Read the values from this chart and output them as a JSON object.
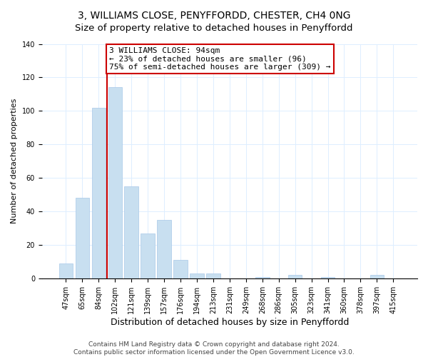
{
  "title": "3, WILLIAMS CLOSE, PENYFFORDD, CHESTER, CH4 0NG",
  "subtitle": "Size of property relative to detached houses in Penyffordd",
  "xlabel": "Distribution of detached houses by size in Penyffordd",
  "ylabel": "Number of detached properties",
  "bar_labels": [
    "47sqm",
    "65sqm",
    "84sqm",
    "102sqm",
    "121sqm",
    "139sqm",
    "157sqm",
    "176sqm",
    "194sqm",
    "213sqm",
    "231sqm",
    "249sqm",
    "268sqm",
    "286sqm",
    "305sqm",
    "323sqm",
    "341sqm",
    "360sqm",
    "378sqm",
    "397sqm",
    "415sqm"
  ],
  "bar_values": [
    9,
    48,
    102,
    114,
    55,
    27,
    35,
    11,
    3,
    3,
    0,
    0,
    1,
    0,
    2,
    0,
    1,
    0,
    0,
    2,
    0
  ],
  "bar_color": "#c8dff0",
  "bar_edge_color": "#a8c8e8",
  "vline_x_index": 2.5,
  "vline_color": "#cc0000",
  "annotation_text": "3 WILLIAMS CLOSE: 94sqm\n← 23% of detached houses are smaller (96)\n75% of semi-detached houses are larger (309) →",
  "annotation_box_color": "#ffffff",
  "annotation_box_edge": "#cc0000",
  "ylim": [
    0,
    140
  ],
  "yticks": [
    0,
    20,
    40,
    60,
    80,
    100,
    120,
    140
  ],
  "footer1": "Contains HM Land Registry data © Crown copyright and database right 2024.",
  "footer2": "Contains public sector information licensed under the Open Government Licence v3.0.",
  "background_color": "#ffffff",
  "title_fontsize": 10,
  "xlabel_fontsize": 9,
  "ylabel_fontsize": 8,
  "tick_fontsize": 7,
  "annotation_fontsize": 8,
  "footer_fontsize": 6.5
}
